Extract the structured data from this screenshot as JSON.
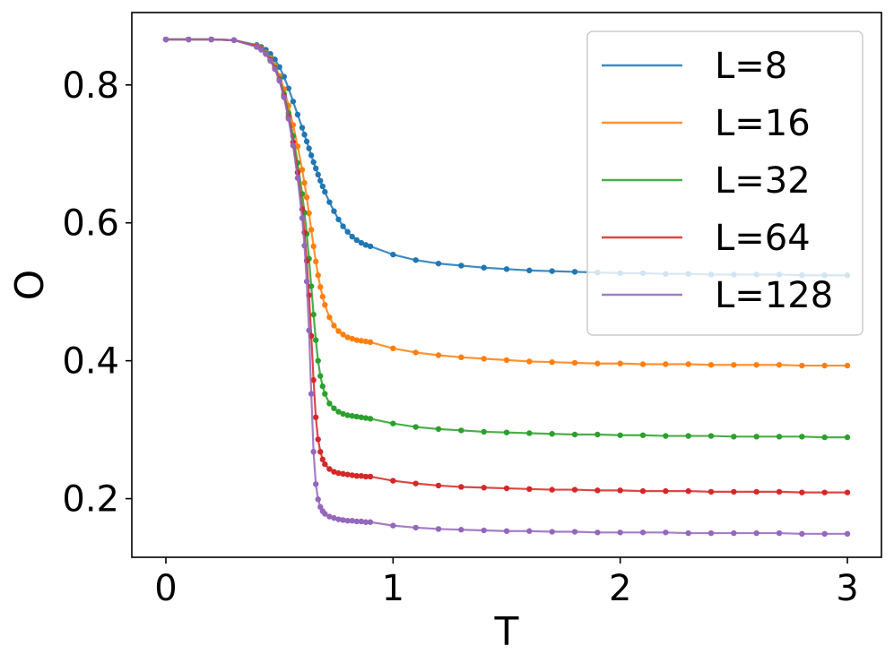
{
  "chart_data": {
    "type": "line",
    "xlabel": "T",
    "ylabel": "O",
    "xlim": [
      -0.15,
      3.15
    ],
    "ylim": [
      0.115,
      0.905
    ],
    "xticks": [
      0,
      1,
      2,
      3
    ],
    "xtick_labels": [
      "0",
      "1",
      "2",
      "3"
    ],
    "yticks": [
      0.2,
      0.4,
      0.6,
      0.8
    ],
    "ytick_labels": [
      "0.2",
      "0.4",
      "0.6",
      "0.8"
    ],
    "grid": false,
    "legend_position": "top-right",
    "x": [
      0.0,
      0.1,
      0.2,
      0.3,
      0.4,
      0.42,
      0.44,
      0.46,
      0.48,
      0.5,
      0.52,
      0.54,
      0.56,
      0.58,
      0.6,
      0.61,
      0.62,
      0.63,
      0.64,
      0.65,
      0.66,
      0.67,
      0.68,
      0.69,
      0.7,
      0.72,
      0.74,
      0.76,
      0.78,
      0.8,
      0.82,
      0.84,
      0.86,
      0.88,
      0.9,
      1.0,
      1.1,
      1.2,
      1.3,
      1.4,
      1.5,
      1.6,
      1.7,
      1.8,
      1.9,
      2.0,
      2.1,
      2.2,
      2.3,
      2.4,
      2.5,
      2.6,
      2.7,
      2.8,
      2.9,
      3.0
    ],
    "series": [
      {
        "name": "L=8",
        "color": "#1f77b4",
        "values": [
          0.866,
          0.866,
          0.866,
          0.865,
          0.858,
          0.855,
          0.851,
          0.845,
          0.837,
          0.826,
          0.812,
          0.795,
          0.776,
          0.757,
          0.738,
          0.728,
          0.718,
          0.708,
          0.698,
          0.688,
          0.679,
          0.67,
          0.661,
          0.653,
          0.645,
          0.63,
          0.617,
          0.605,
          0.595,
          0.587,
          0.58,
          0.575,
          0.571,
          0.568,
          0.566,
          0.554,
          0.546,
          0.541,
          0.538,
          0.535,
          0.533,
          0.531,
          0.53,
          0.529,
          0.528,
          0.527,
          0.527,
          0.526,
          0.526,
          0.525,
          0.525,
          0.525,
          0.525,
          0.524,
          0.524,
          0.524
        ]
      },
      {
        "name": "L=16",
        "color": "#ff7f0e",
        "values": [
          0.866,
          0.866,
          0.866,
          0.865,
          0.857,
          0.853,
          0.847,
          0.839,
          0.828,
          0.813,
          0.794,
          0.77,
          0.742,
          0.711,
          0.677,
          0.658,
          0.637,
          0.614,
          0.59,
          0.566,
          0.544,
          0.524,
          0.507,
          0.493,
          0.481,
          0.463,
          0.451,
          0.443,
          0.438,
          0.434,
          0.432,
          0.43,
          0.429,
          0.428,
          0.427,
          0.418,
          0.412,
          0.408,
          0.405,
          0.403,
          0.401,
          0.399,
          0.398,
          0.397,
          0.396,
          0.396,
          0.395,
          0.395,
          0.395,
          0.394,
          0.394,
          0.394,
          0.394,
          0.393,
          0.393,
          0.393
        ]
      },
      {
        "name": "L=32",
        "color": "#2ca02c",
        "values": [
          0.866,
          0.866,
          0.866,
          0.865,
          0.856,
          0.852,
          0.846,
          0.837,
          0.825,
          0.809,
          0.787,
          0.759,
          0.726,
          0.687,
          0.642,
          0.615,
          0.584,
          0.548,
          0.508,
          0.467,
          0.43,
          0.4,
          0.378,
          0.363,
          0.352,
          0.338,
          0.331,
          0.326,
          0.323,
          0.321,
          0.32,
          0.319,
          0.318,
          0.317,
          0.316,
          0.309,
          0.304,
          0.301,
          0.299,
          0.297,
          0.296,
          0.295,
          0.294,
          0.293,
          0.293,
          0.292,
          0.292,
          0.291,
          0.291,
          0.291,
          0.29,
          0.29,
          0.29,
          0.29,
          0.289,
          0.289
        ]
      },
      {
        "name": "L=64",
        "color": "#d62728",
        "values": [
          0.866,
          0.866,
          0.866,
          0.865,
          0.856,
          0.852,
          0.845,
          0.836,
          0.824,
          0.807,
          0.784,
          0.754,
          0.717,
          0.673,
          0.62,
          0.586,
          0.545,
          0.495,
          0.436,
          0.372,
          0.318,
          0.286,
          0.268,
          0.257,
          0.25,
          0.243,
          0.239,
          0.237,
          0.236,
          0.235,
          0.234,
          0.233,
          0.233,
          0.232,
          0.232,
          0.226,
          0.222,
          0.219,
          0.217,
          0.216,
          0.215,
          0.214,
          0.213,
          0.213,
          0.212,
          0.212,
          0.211,
          0.211,
          0.211,
          0.21,
          0.21,
          0.21,
          0.21,
          0.209,
          0.209,
          0.209
        ]
      },
      {
        "name": "L=128",
        "color": "#9467bd",
        "values": [
          0.866,
          0.866,
          0.866,
          0.865,
          0.855,
          0.851,
          0.845,
          0.835,
          0.823,
          0.806,
          0.782,
          0.751,
          0.712,
          0.665,
          0.607,
          0.567,
          0.515,
          0.444,
          0.352,
          0.268,
          0.221,
          0.199,
          0.188,
          0.182,
          0.178,
          0.174,
          0.172,
          0.17,
          0.169,
          0.168,
          0.168,
          0.167,
          0.167,
          0.166,
          0.166,
          0.161,
          0.158,
          0.156,
          0.155,
          0.154,
          0.153,
          0.153,
          0.152,
          0.152,
          0.151,
          0.151,
          0.151,
          0.151,
          0.15,
          0.15,
          0.15,
          0.15,
          0.15,
          0.149,
          0.149,
          0.149
        ]
      }
    ]
  }
}
